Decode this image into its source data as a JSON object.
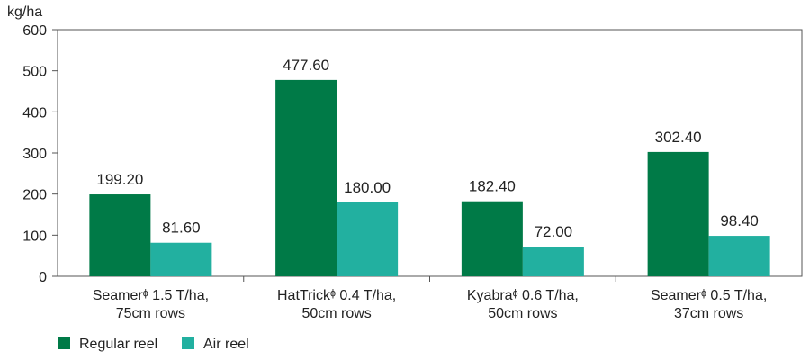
{
  "chart_data": {
    "type": "bar",
    "ylabel": "kg/ha",
    "ylim": [
      0,
      600
    ],
    "yticks": [
      0,
      100,
      200,
      300,
      400,
      500,
      600
    ],
    "categories": [
      [
        "Seamerᶲ 1.5 T/ha,",
        "75cm rows"
      ],
      [
        "HatTrickᶲ 0.4 T/ha,",
        "50cm rows"
      ],
      [
        "Kyabraᶲ 0.6 T/ha,",
        "50cm rows"
      ],
      [
        "Seamerᶲ 0.5 T/ha,",
        "37cm rows"
      ]
    ],
    "series": [
      {
        "name": "Regular reel",
        "color": "#007A47",
        "values": [
          199.2,
          477.6,
          182.4,
          302.4
        ],
        "labels": [
          "199.20",
          "477.60",
          "182.40",
          "302.40"
        ]
      },
      {
        "name": "Air reel",
        "color": "#22B0A0",
        "values": [
          81.6,
          180.0,
          72.0,
          98.4
        ],
        "labels": [
          "81.60",
          "180.00",
          "72.00",
          "98.40"
        ]
      }
    ],
    "grid": false,
    "legend": "bottom-left"
  }
}
